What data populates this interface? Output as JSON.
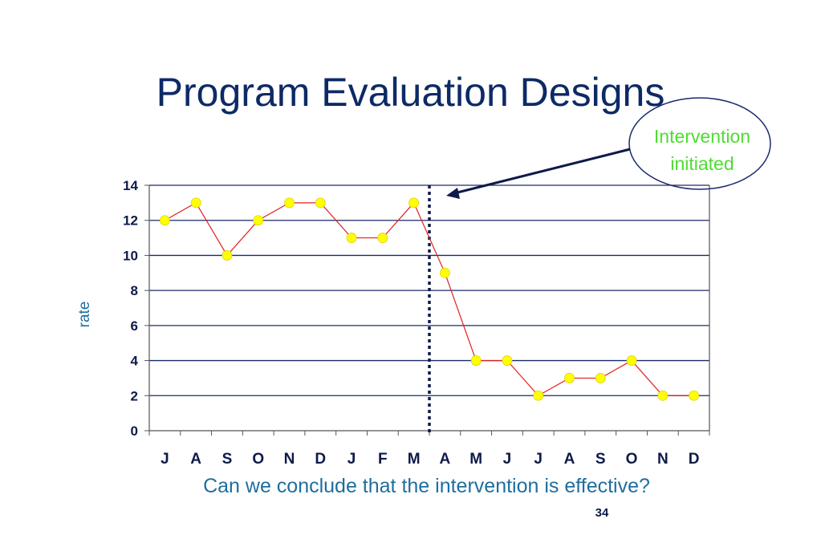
{
  "slide": {
    "title": "Program Evaluation Designs",
    "question": "Can we conclude that the intervention is effective?",
    "page_number": "34"
  },
  "callout": {
    "line1": "Intervention",
    "line2": "initiated"
  },
  "colors": {
    "title": "#0d2a66",
    "line": "#e02020",
    "marker": "#ffff00",
    "gridline": "#1a2a6c",
    "intervention_line": "#0d1a4a",
    "callout_text": "#4ddd32",
    "question": "#1f6e9e"
  },
  "chart_data": {
    "type": "line",
    "title": "",
    "xlabel": "",
    "ylabel": "rate",
    "ylim": [
      0,
      14
    ],
    "yticks": [
      0,
      2,
      4,
      6,
      8,
      10,
      12,
      14
    ],
    "grid": true,
    "categories": [
      "J",
      "A",
      "S",
      "O",
      "N",
      "D",
      "J",
      "F",
      "M",
      "A",
      "M",
      "J",
      "J",
      "A",
      "S",
      "O",
      "N",
      "D"
    ],
    "series": [
      {
        "values": [
          12,
          13,
          10,
          12,
          13,
          13,
          11,
          11,
          13,
          9,
          4,
          4,
          2,
          3,
          3,
          4,
          2,
          2
        ]
      }
    ],
    "intervention_index": 9
  }
}
